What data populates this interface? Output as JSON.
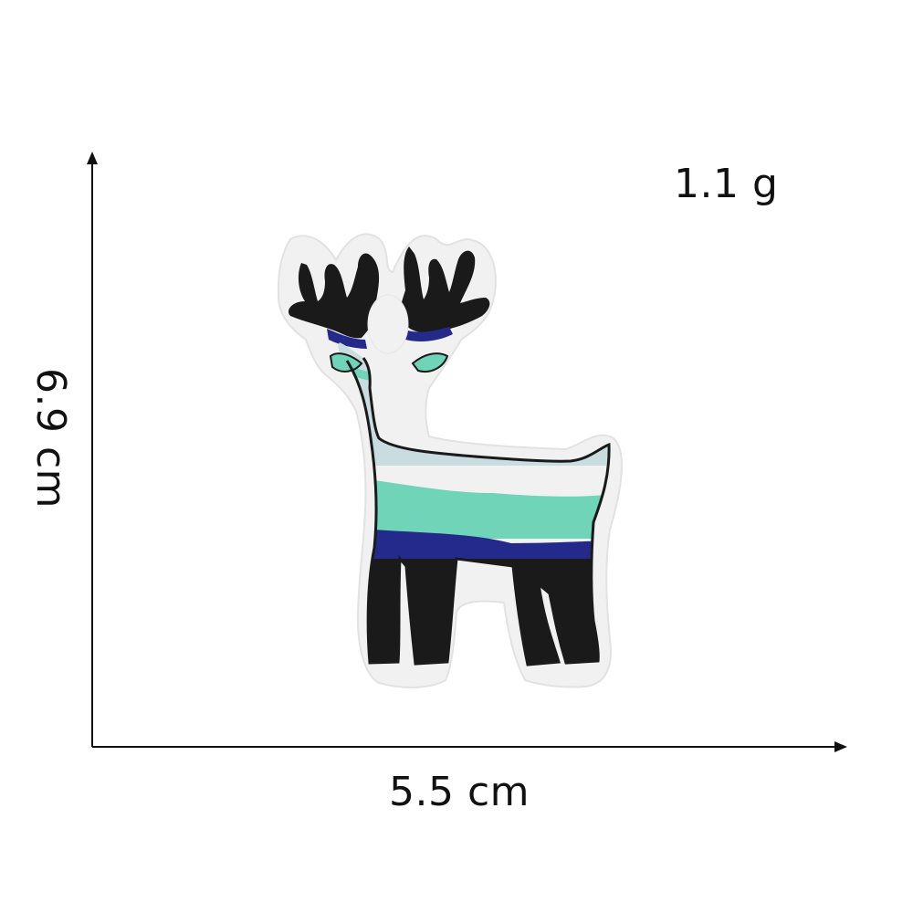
{
  "labels": {
    "weight": "1.1 g",
    "width": "5.5 cm",
    "height": "6.9 cm"
  },
  "colors": {
    "felt": "#f1f1f1",
    "black_thread": "#1a1a1a",
    "navy_thread": "#232a8c",
    "mint_thread": "#6fd4b8",
    "pale_thread": "#c9dde0",
    "axis": "#111111"
  },
  "icons": {
    "subject": "deer-patch-icon"
  }
}
